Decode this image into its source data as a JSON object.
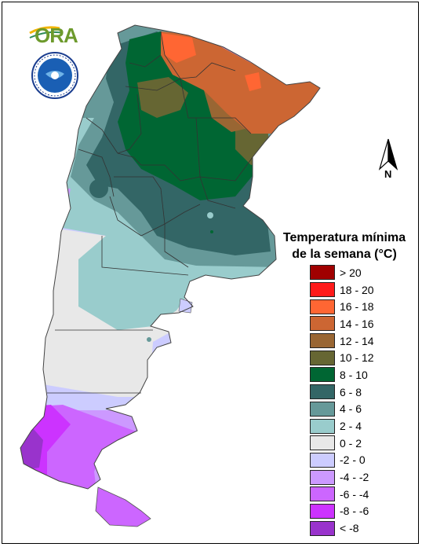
{
  "legend": {
    "title_line1": "Temperatura mínima",
    "title_line2": "de la semana (°C)",
    "items": [
      {
        "label": "> 20",
        "color": "#a00000"
      },
      {
        "label": "18 - 20",
        "color": "#ff1a1a"
      },
      {
        "label": "16 - 18",
        "color": "#ff6633"
      },
      {
        "label": "14 - 16",
        "color": "#cc6633"
      },
      {
        "label": "12 - 14",
        "color": "#996633"
      },
      {
        "label": "10 - 12",
        "color": "#666633"
      },
      {
        "label": "8 - 10",
        "color": "#006633"
      },
      {
        "label": "6 - 8",
        "color": "#336666"
      },
      {
        "label": "4 - 6",
        "color": "#669999"
      },
      {
        "label": "2 - 4",
        "color": "#99cccc"
      },
      {
        "label": "0 - 2",
        "color": "#e8e8e8"
      },
      {
        "label": "-2 - 0",
        "color": "#ccccff"
      },
      {
        "label": "-4 - -2",
        "color": "#cc99ff"
      },
      {
        "label": "-6 - -4",
        "color": "#cc66ff"
      },
      {
        "label": "-8 - -6",
        "color": "#cc33ff"
      },
      {
        "label": "< -8",
        "color": "#9933cc"
      }
    ]
  },
  "logo": {
    "text": "ORA"
  },
  "compass": {
    "label": "N"
  },
  "map": {
    "region": "Argentina"
  }
}
